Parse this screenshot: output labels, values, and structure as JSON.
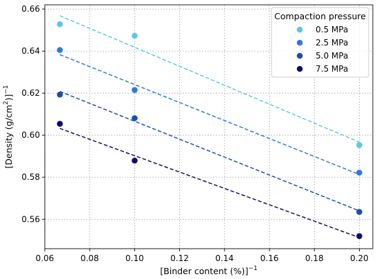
{
  "chart_data": {
    "type": "scatter",
    "title": "",
    "xlabel": {
      "prefix": "[Binder content (%)]",
      "sup": "−1"
    },
    "ylabel": {
      "prefix": "[Density (g/cm",
      "sup2": "2",
      "mid": ")]",
      "sup": "−1"
    },
    "xlim": [
      0.06,
      0.206
    ],
    "ylim": [
      0.546,
      0.662
    ],
    "x_ticks": [
      0.06,
      0.08,
      0.1,
      0.12,
      0.14,
      0.16,
      0.18,
      0.2
    ],
    "x_tick_labels": [
      "0.06",
      "0.08",
      "0.10",
      "0.12",
      "0.14",
      "0.16",
      "0.18",
      "0.20"
    ],
    "y_ticks": [
      0.56,
      0.58,
      0.6,
      0.62,
      0.64,
      0.66
    ],
    "y_tick_labels": [
      "0.56",
      "0.58",
      "0.60",
      "0.62",
      "0.64",
      "0.66"
    ],
    "grid": true,
    "legend": {
      "title": "Compaction pressure",
      "placement": "top-right"
    },
    "series": [
      {
        "name": "0.5 MPa",
        "color": "#5bc8e8",
        "x": [
          0.0667,
          0.1,
          0.2
        ],
        "y": [
          0.6528,
          0.6473,
          0.5953
        ],
        "fit": {
          "x": [
            0.0667,
            0.2
          ],
          "y": [
            0.6568,
            0.5967
          ]
        }
      },
      {
        "name": "2.5 MPa",
        "color": "#2f7ad9",
        "x": [
          0.0667,
          0.1,
          0.2
        ],
        "y": [
          0.6405,
          0.6215,
          0.5822
        ],
        "fit": {
          "x": [
            0.0667,
            0.2
          ],
          "y": [
            0.6383,
            0.5813
          ]
        }
      },
      {
        "name": "5.0 MPa",
        "color": "#1a4fa8",
        "x": [
          0.0667,
          0.1,
          0.2
        ],
        "y": [
          0.6193,
          0.6081,
          0.5635
        ],
        "fit": {
          "x": [
            0.0667,
            0.2
          ],
          "y": [
            0.6208,
            0.564
          ]
        }
      },
      {
        "name": "7.5 MPa",
        "color": "#0b0f6b",
        "x": [
          0.0667,
          0.1,
          0.2
        ],
        "y": [
          0.6054,
          0.5879,
          0.552
        ],
        "fit": {
          "x": [
            0.0667,
            0.2
          ],
          "y": [
            0.6032,
            0.5513
          ]
        }
      }
    ]
  }
}
